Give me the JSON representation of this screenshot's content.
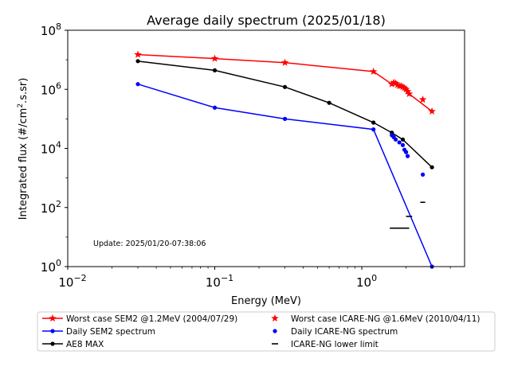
{
  "chart_data": {
    "type": "line",
    "title": "Average daily spectrum (2025/01/18)",
    "xlabel": "Energy (MeV)",
    "ylabel_parts": [
      "Integrated flux (#/cm",
      "2",
      ".s.sr)"
    ],
    "x_scale": "log",
    "y_scale": "log",
    "xlim": [
      0.01,
      5
    ],
    "ylim": [
      1,
      100000000
    ],
    "x_ticks": [
      {
        "value": 0.01,
        "base": "10",
        "exp": "−2"
      },
      {
        "value": 0.1,
        "base": "10",
        "exp": "−1"
      },
      {
        "value": 1,
        "base": "10",
        "exp": "0"
      }
    ],
    "y_ticks": [
      {
        "value": 1,
        "base": "10",
        "exp": "0"
      },
      {
        "value": 100,
        "base": "10",
        "exp": "2"
      },
      {
        "value": 10000,
        "base": "10",
        "exp": "4"
      },
      {
        "value": 1000000,
        "base": "10",
        "exp": "6"
      },
      {
        "value": 100000000,
        "base": "10",
        "exp": "8"
      }
    ],
    "annotation": "Update: 2025/01/20-07:38:06",
    "grid": false,
    "legend_position": "below",
    "series": [
      {
        "name": "Worst case SEM2 @1.2MeV (2004/07/29)",
        "color": "#ff0000",
        "marker": "star",
        "line": true,
        "x": [
          0.03,
          0.1,
          0.3,
          1.2,
          1.6,
          1.65,
          1.7,
          1.75,
          1.8,
          1.85,
          1.9,
          1.95,
          2.0,
          2.05,
          2.1,
          3.0
        ],
        "y": [
          15000000,
          11000000,
          8000000,
          4000000,
          1500000,
          1700000,
          1600000,
          1400000,
          1300000,
          1300000,
          1200000,
          1100000,
          1000000,
          850000,
          700000,
          180000
        ]
      },
      {
        "name": "Daily SEM2 spectrum",
        "color": "#0000ff",
        "marker": "dot",
        "line": true,
        "x": [
          0.03,
          0.1,
          0.3,
          1.2,
          3.0
        ],
        "y": [
          1500000,
          240000,
          100000,
          44000,
          1
        ]
      },
      {
        "name": "AE8 MAX",
        "color": "#000000",
        "marker": "dot",
        "line": true,
        "x": [
          0.03,
          0.1,
          0.3,
          0.6,
          1.2,
          1.6,
          1.9,
          3.0
        ],
        "y": [
          9000000,
          4400000,
          1200000,
          350000,
          75000,
          34000,
          20000,
          2300
        ]
      },
      {
        "name": "Worst case ICARE-NG @1.6MeV (2010/04/11)",
        "color": "#ff0000",
        "marker": "star",
        "line": false,
        "x": [
          2.6
        ],
        "y": [
          450000
        ]
      },
      {
        "name": "Daily ICARE-NG spectrum",
        "color": "#0000ff",
        "marker": "dot",
        "line": false,
        "x": [
          1.6,
          1.65,
          1.7,
          1.8,
          1.9,
          1.95,
          2.0,
          2.05,
          2.6
        ],
        "y": [
          28000,
          24000,
          20000,
          16000,
          13000,
          9000,
          7500,
          5500,
          1300
        ]
      },
      {
        "name": "ICARE-NG lower limit",
        "color": "#000000",
        "marker": "hline",
        "line": false,
        "segments": [
          {
            "x1": 1.55,
            "x2": 2.1,
            "y": 20
          },
          {
            "x1": 2.0,
            "x2": 2.2,
            "y": 50
          },
          {
            "x1": 2.5,
            "x2": 2.7,
            "y": 150
          }
        ]
      }
    ]
  }
}
